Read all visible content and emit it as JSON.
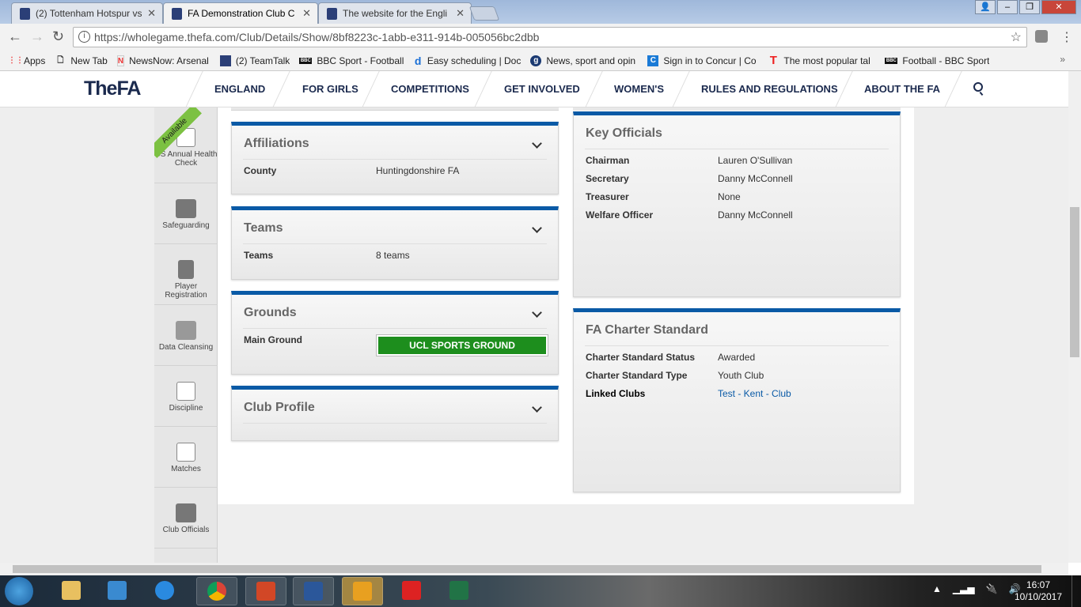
{
  "browser": {
    "tabs": [
      {
        "label": "(2) Tottenham Hotspur vs"
      },
      {
        "label": "FA Demonstration Club C",
        "active": true
      },
      {
        "label": "The website for the Engli"
      }
    ],
    "url": "https://wholegame.thefa.com/Club/Details/Show/8bf8223c-1abb-e311-914b-005056bc2dbb",
    "bookmarks": [
      "Apps",
      "New Tab",
      "NewsNow: Arsenal N",
      "(2) TeamTalk",
      "BBC Sport - Football",
      "Easy scheduling | Doc",
      "News, sport and opin",
      "Sign in to Concur | Co",
      "The most popular tal",
      "Football - BBC Sport"
    ],
    "bookmarks_more": "»"
  },
  "site": {
    "logo": "TheFA",
    "nav": [
      "ENGLAND",
      "FOR GIRLS",
      "COMPETITIONS",
      "GET INVOLVED",
      "WOMEN'S",
      "RULES AND REGULATIONS",
      "ABOUT THE FA"
    ]
  },
  "sidebar": {
    "badge": "Available",
    "items": [
      "CS Annual Health Check",
      "Safeguarding",
      "Player Registration",
      "Data Cleansing",
      "Discipline",
      "Matches",
      "Club Officials"
    ]
  },
  "panels": {
    "affiliations": {
      "title": "Affiliations",
      "label": "County",
      "value": "Huntingdonshire FA"
    },
    "teams": {
      "title": "Teams",
      "label": "Teams",
      "value": "8 teams"
    },
    "grounds": {
      "title": "Grounds",
      "label": "Main Ground",
      "value": "UCL SPORTS GROUND"
    },
    "profile": {
      "title": "Club Profile"
    },
    "officials": {
      "title": "Key Officials",
      "rows": [
        {
          "label": "Chairman",
          "value": "Lauren O'Sullivan"
        },
        {
          "label": "Secretary",
          "value": "Danny McConnell"
        },
        {
          "label": "Treasurer",
          "value": "None"
        },
        {
          "label": "Welfare Officer",
          "value": "Danny McConnell"
        }
      ]
    },
    "charter": {
      "title": "FA Charter Standard",
      "rows": [
        {
          "label": "Charter Standard Status",
          "value": "Awarded"
        },
        {
          "label": "Charter Standard Type",
          "value": "Youth Club"
        },
        {
          "label": "Linked Clubs",
          "value": "Test - Kent - Club"
        }
      ]
    }
  },
  "taskbar": {
    "time": "16:07",
    "date": "10/10/2017"
  },
  "colors": {
    "accent": "#0a5aa6",
    "ground_button": "#1d8e1d",
    "badge": "#7cc142"
  }
}
